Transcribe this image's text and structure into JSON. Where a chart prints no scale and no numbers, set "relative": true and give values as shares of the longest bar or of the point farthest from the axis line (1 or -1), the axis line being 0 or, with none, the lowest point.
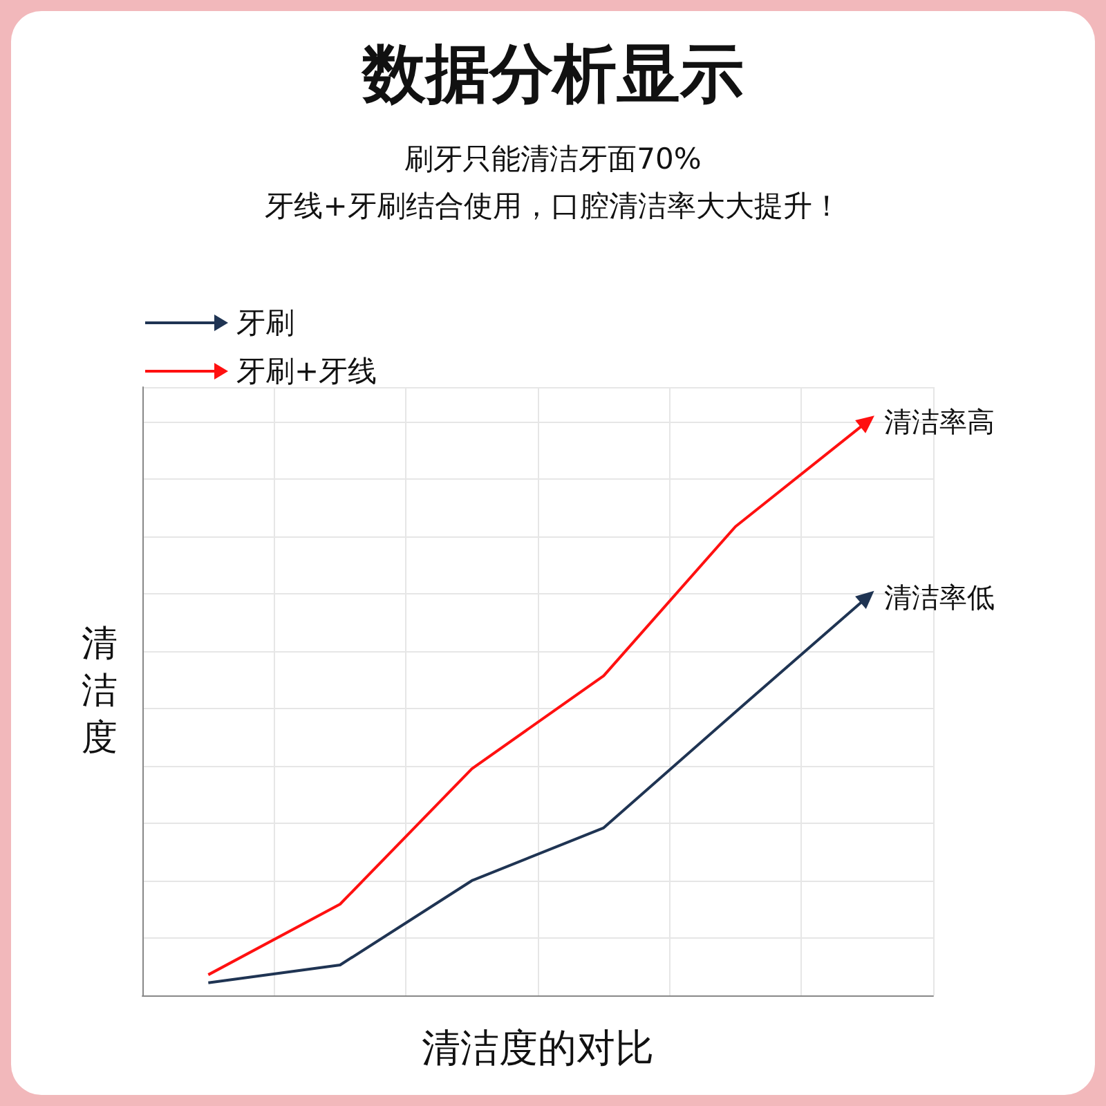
{
  "chart_data": {
    "type": "line",
    "title": "数据分析显示",
    "subtitle": "刷牙只能清洁牙面70%\n牙线+牙刷结合使用，口腔清洁率大大提升！",
    "xlabel": "清洁度的对比",
    "ylabel": "清洁度",
    "relative": true,
    "categories": [
      null,
      null,
      null,
      null,
      null,
      null
    ],
    "series": [
      {
        "name": "牙刷",
        "color": "#1f3453",
        "values": [
          0.022,
          0.053,
          0.2,
          0.292,
          0.494,
          0.694
        ]
      },
      {
        "name": "牙刷+牙线",
        "color": "#ff1010",
        "values": [
          0.036,
          0.159,
          0.395,
          0.557,
          0.817,
          1
        ]
      }
    ],
    "annotations": [
      "清洁率高",
      "清洁率低"
    ],
    "grid": true,
    "legend": "top left"
  }
}
